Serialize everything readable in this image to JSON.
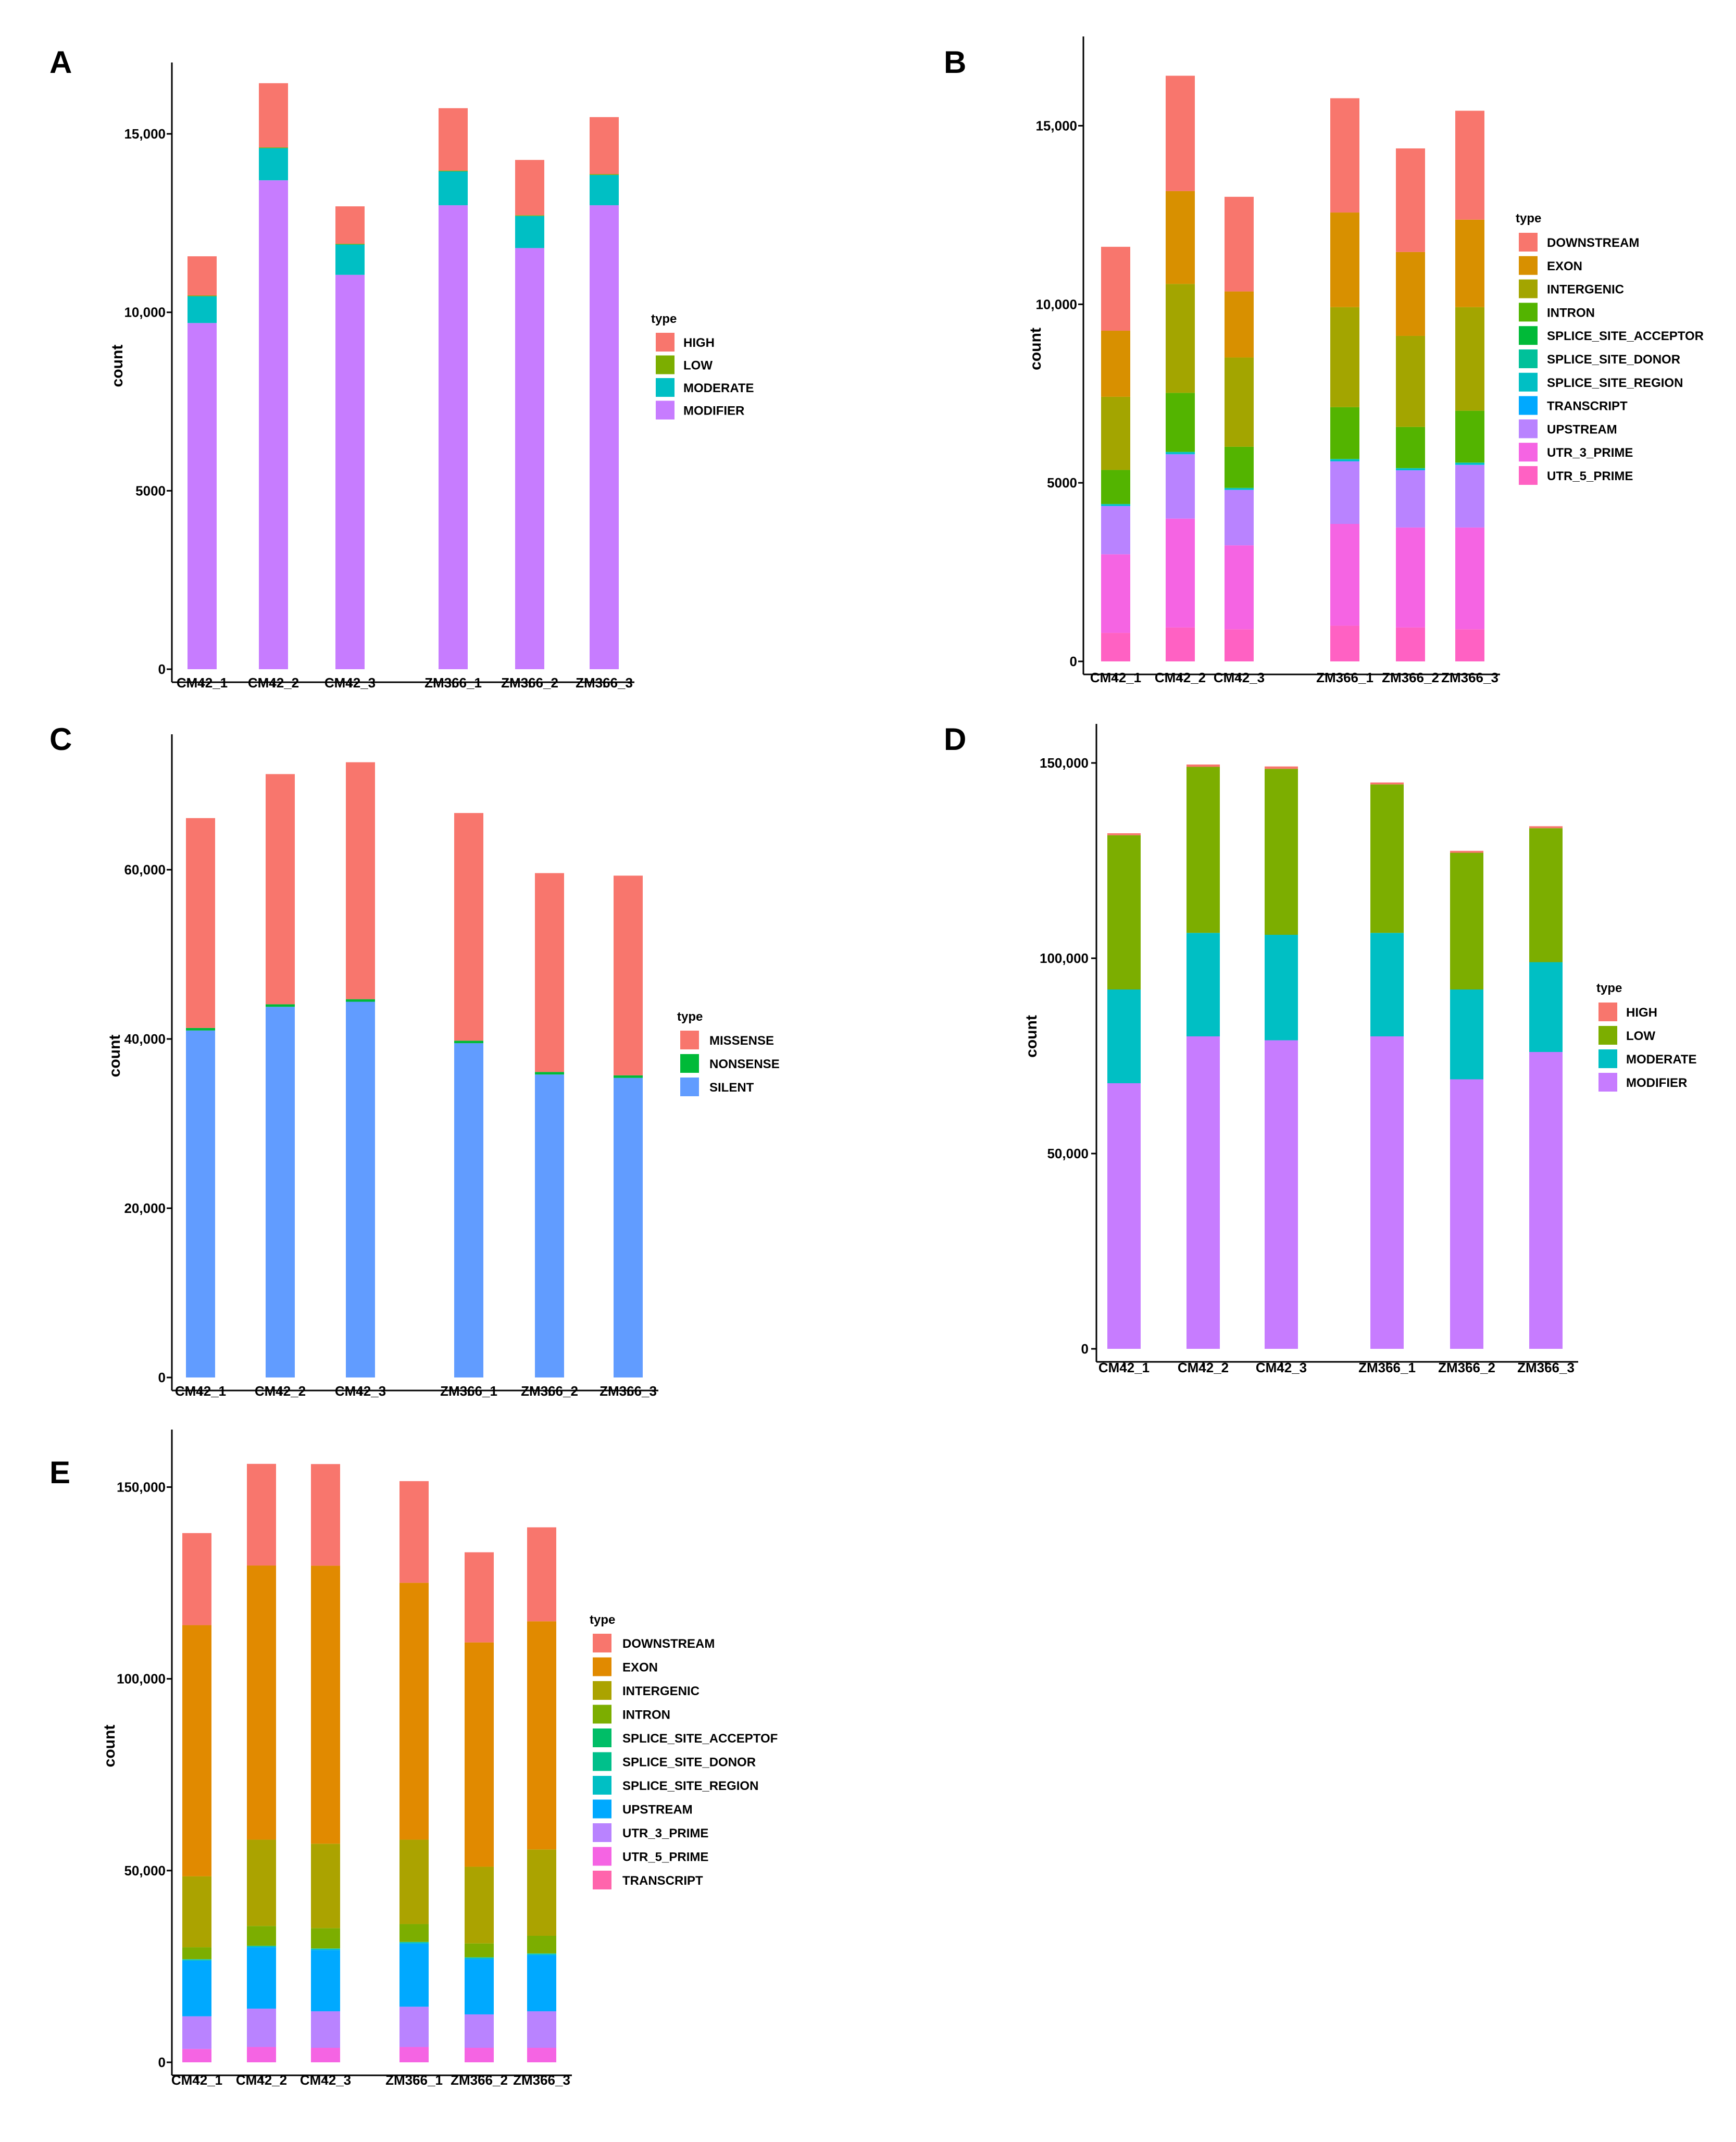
{
  "chart_data": [
    {
      "panel": "A",
      "type": "bar",
      "stacked": true,
      "categories": [
        "CM42_1",
        "CM42_2",
        "CM42_3",
        "ZM366_1",
        "ZM366_2",
        "ZM366_3"
      ],
      "ylabel": "count",
      "xlabel": "",
      "ylim": [
        0,
        17000
      ],
      "yticks": [
        0,
        5000,
        10000,
        15000
      ],
      "yticklabels": [
        "0",
        "5000",
        "10,000",
        "15,000"
      ],
      "legend_title": "type",
      "legend_position": "right",
      "series": [
        {
          "name": "MODIFIER",
          "color": "#C77CFF",
          "values": [
            9700,
            13700,
            11050,
            13000,
            11800,
            13000
          ]
        },
        {
          "name": "MODERATE",
          "color": "#00BFC4",
          "values": [
            750,
            900,
            850,
            950,
            900,
            850
          ]
        },
        {
          "name": "LOW",
          "color": "#7CAE00",
          "values": [
            20,
            20,
            20,
            20,
            20,
            20
          ]
        },
        {
          "name": "HIGH",
          "color": "#F8766D",
          "values": [
            1100,
            1800,
            1050,
            1750,
            1550,
            1600
          ]
        }
      ]
    },
    {
      "panel": "B",
      "type": "bar",
      "stacked": true,
      "categories": [
        "CM42_1",
        "CM42_2",
        "CM42_3",
        "ZM366_1",
        "ZM366_2",
        "ZM366_3"
      ],
      "ylabel": "count",
      "xlabel": "",
      "ylim": [
        0,
        17500
      ],
      "yticks": [
        0,
        5000,
        10000,
        15000
      ],
      "yticklabels": [
        "0",
        "5000",
        "10,000",
        "15,000"
      ],
      "legend_title": "type",
      "legend_position": "right",
      "series": [
        {
          "name": "UTR_5_PRIME",
          "color": "#FF61C3",
          "values": [
            800,
            950,
            900,
            1000,
            950,
            900
          ]
        },
        {
          "name": "UTR_3_PRIME",
          "color": "#F564E3",
          "values": [
            2200,
            3050,
            2350,
            2850,
            2800,
            2850
          ]
        },
        {
          "name": "UPSTREAM",
          "color": "#B983FF",
          "values": [
            1350,
            1800,
            1550,
            1750,
            1600,
            1750
          ]
        },
        {
          "name": "TRANSCRIPT",
          "color": "#00A9FF",
          "values": [
            10,
            10,
            10,
            10,
            10,
            10
          ]
        },
        {
          "name": "SPLICE_SITE_REGION",
          "color": "#00BFC4",
          "values": [
            40,
            50,
            40,
            50,
            45,
            50
          ]
        },
        {
          "name": "SPLICE_SITE_DONOR",
          "color": "#00C19A",
          "values": [
            5,
            5,
            5,
            5,
            5,
            5
          ]
        },
        {
          "name": "SPLICE_SITE_ACCEPTOR",
          "color": "#00BA38",
          "values": [
            5,
            5,
            5,
            5,
            5,
            5
          ]
        },
        {
          "name": "INTRON",
          "color": "#53B400",
          "values": [
            950,
            1650,
            1150,
            1450,
            1150,
            1450
          ]
        },
        {
          "name": "INTERGENIC",
          "color": "#A3A500",
          "values": [
            2050,
            3050,
            2500,
            2800,
            2550,
            2900
          ]
        },
        {
          "name": "EXON",
          "color": "#D89000",
          "values": [
            1850,
            2600,
            1850,
            2650,
            2350,
            2450
          ]
        },
        {
          "name": "DOWNSTREAM",
          "color": "#F8766D",
          "values": [
            2350,
            3230,
            2650,
            3200,
            2900,
            3050
          ]
        }
      ]
    },
    {
      "panel": "C",
      "type": "bar",
      "stacked": true,
      "categories": [
        "CM42_1",
        "CM42_2",
        "CM42_3",
        "ZM366_1",
        "ZM366_2",
        "ZM366_3"
      ],
      "ylabel": "count",
      "xlabel": "",
      "ylim": [
        0,
        76000
      ],
      "yticks": [
        0,
        20000,
        40000,
        60000
      ],
      "yticklabels": [
        "0",
        "20,000",
        "40,000",
        "60,000"
      ],
      "legend_title": "type",
      "legend_position": "right",
      "series": [
        {
          "name": "SILENT",
          "color": "#619CFF",
          "values": [
            41000,
            43800,
            44400,
            39500,
            35800,
            35400
          ]
        },
        {
          "name": "NONSENSE",
          "color": "#00BA38",
          "values": [
            300,
            300,
            300,
            300,
            300,
            300
          ]
        },
        {
          "name": "MISSENSE",
          "color": "#F8766D",
          "values": [
            24800,
            27200,
            28000,
            26900,
            23500,
            23600
          ]
        }
      ]
    },
    {
      "panel": "D",
      "type": "bar",
      "stacked": true,
      "categories": [
        "CM42_1",
        "CM42_2",
        "CM42_3",
        "ZM366_1",
        "ZM366_2",
        "ZM366_3"
      ],
      "ylabel": "count",
      "xlabel": "",
      "ylim": [
        0,
        160000
      ],
      "yticks": [
        0,
        50000,
        100000,
        150000
      ],
      "yticklabels": [
        "0",
        "50,000",
        "100,000",
        "150,000"
      ],
      "legend_title": "type",
      "legend_position": "right",
      "series": [
        {
          "name": "MODIFIER",
          "color": "#C77CFF",
          "values": [
            68000,
            80000,
            79000,
            80000,
            69000,
            76000
          ]
        },
        {
          "name": "MODERATE",
          "color": "#00BFC4",
          "values": [
            24000,
            26500,
            27000,
            26500,
            23000,
            23000
          ]
        },
        {
          "name": "LOW",
          "color": "#7CAE00",
          "values": [
            39500,
            42500,
            42500,
            38000,
            35000,
            34300
          ]
        },
        {
          "name": "HIGH",
          "color": "#F8766D",
          "values": [
            500,
            600,
            600,
            500,
            500,
            500
          ]
        }
      ]
    },
    {
      "panel": "E",
      "type": "bar",
      "stacked": true,
      "categories": [
        "CM42_1",
        "CM42_2",
        "CM42_3",
        "ZM366_1",
        "ZM366_2",
        "ZM366_3"
      ],
      "ylabel": "count",
      "xlabel": "",
      "ylim": [
        0,
        165000
      ],
      "yticks": [
        0,
        50000,
        100000,
        150000
      ],
      "yticklabels": [
        "0",
        "50,000",
        "100,000",
        "150,000"
      ],
      "legend_title": "type",
      "legend_position": "right",
      "series": [
        {
          "name": "UTR_5_PRIME",
          "color": "#F564E3",
          "values": [
            3500,
            4000,
            3800,
            4000,
            3800,
            3800
          ]
        },
        {
          "name": "UTR_3_PRIME",
          "color": "#B983FF",
          "values": [
            8500,
            10000,
            9500,
            10500,
            8700,
            9500
          ]
        },
        {
          "name": "UPSTREAM",
          "color": "#00A9FF",
          "values": [
            14500,
            16000,
            16000,
            16500,
            14500,
            14700
          ]
        },
        {
          "name": "SPLICE_SITE_REGION",
          "color": "#00BFC4",
          "values": [
            300,
            300,
            300,
            300,
            300,
            300
          ]
        },
        {
          "name": "SPLICE_SITE_DONOR",
          "color": "#00C08B",
          "values": [
            50,
            50,
            50,
            50,
            50,
            50
          ]
        },
        {
          "name": "SPLICE_SITE_ACCEPTOR",
          "color": "#00BE67",
          "values": [
            50,
            50,
            50,
            50,
            50,
            50
          ]
        },
        {
          "name": "INTRON",
          "color": "#7CAE00",
          "values": [
            3100,
            5150,
            5300,
            4650,
            3600,
            4600
          ]
        },
        {
          "name": "INTERGENIC",
          "color": "#ABA300",
          "values": [
            18500,
            22500,
            22000,
            22000,
            20000,
            22500
          ]
        },
        {
          "name": "EXON",
          "color": "#E18A00",
          "values": [
            65500,
            71500,
            72500,
            67000,
            58500,
            59500
          ]
        },
        {
          "name": "DOWNSTREAM",
          "color": "#F8766D",
          "values": [
            24000,
            26500,
            26500,
            26500,
            23500,
            24500
          ]
        },
        {
          "name": "TRANSCRIPT",
          "color": "#FF65AC",
          "values": [
            10,
            10,
            10,
            10,
            10,
            10
          ]
        }
      ],
      "legend_order": [
        "DOWNSTREAM",
        "EXON",
        "INTERGENIC",
        "INTRON",
        "SPLICE_SITE_ACCEPTOR",
        "SPLICE_SITE_DONOR",
        "SPLICE_SITE_REGION",
        "UPSTREAM",
        "UTR_3_PRIME",
        "UTR_5_PRIME",
        "TRANSCRIPT"
      ],
      "legend_display_labels": {
        "SPLICE_SITE_ACCEPTOR": "SPLICE_SITE_ACCEPTOF"
      }
    }
  ],
  "panel_b_legend_order": [
    "DOWNSTREAM",
    "EXON",
    "INTERGENIC",
    "INTRON",
    "SPLICE_SITE_ACCEPTOR",
    "SPLICE_SITE_DONOR",
    "SPLICE_SITE_REGION",
    "TRANSCRIPT",
    "UPSTREAM",
    "UTR_3_PRIME",
    "UTR_5_PRIME"
  ],
  "panel_a_legend_order": [
    "HIGH",
    "LOW",
    "MODERATE",
    "MODIFIER"
  ],
  "panel_c_legend_order": [
    "MISSENSE",
    "NONSENSE",
    "SILENT"
  ],
  "panel_d_legend_order": [
    "HIGH",
    "LOW",
    "MODERATE",
    "MODIFIER"
  ]
}
